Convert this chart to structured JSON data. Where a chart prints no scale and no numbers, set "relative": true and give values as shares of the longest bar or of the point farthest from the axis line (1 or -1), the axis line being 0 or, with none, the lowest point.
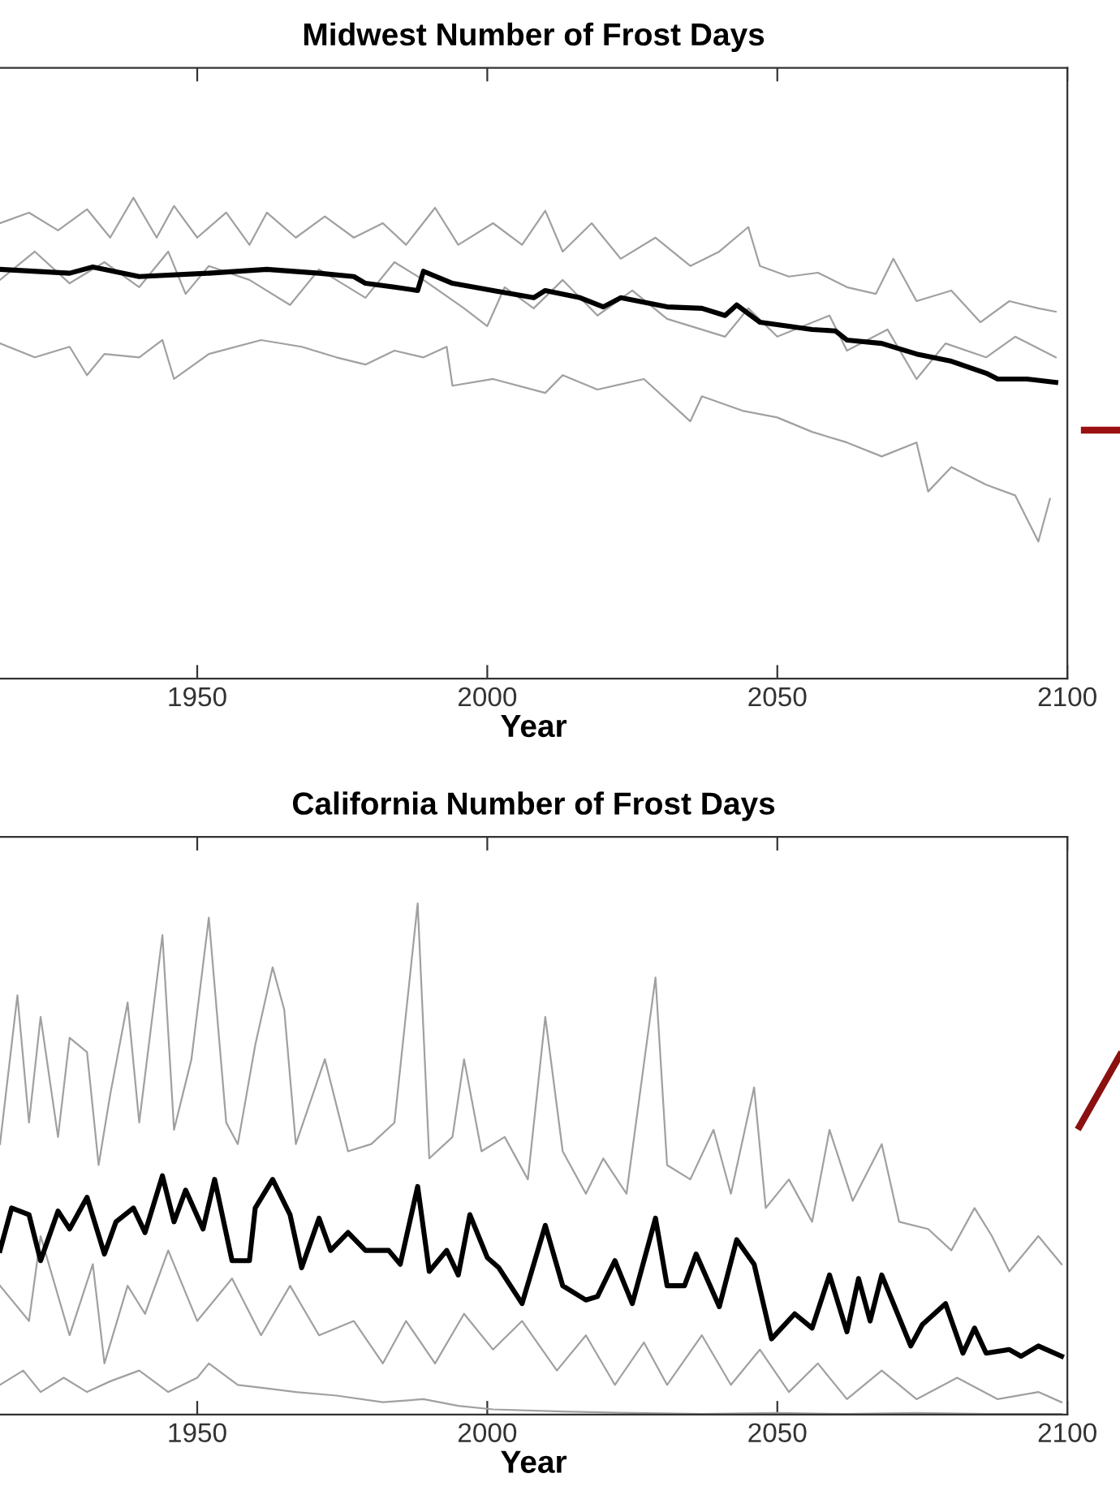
{
  "chart_data": [
    {
      "type": "line",
      "title": "Midwest Number of Frost Days",
      "xlabel": "Year",
      "relative": true,
      "xlim": [
        1916,
        2100
      ],
      "xticks": [
        1950,
        2000,
        2050,
        2100
      ],
      "tick_labels": "x",
      "grid": false,
      "marker": "none",
      "line_style": "solid",
      "series": [
        {
          "color": "#a0a0a0",
          "x": [
            1916,
            1921,
            1926,
            1931,
            1935,
            1939,
            1943,
            1946,
            1950,
            1955,
            1959,
            1962,
            1967,
            1972,
            1977,
            1982,
            1986,
            1991,
            1995,
            2001,
            2006,
            2010,
            2013,
            2018,
            2023,
            2029,
            2035,
            2040,
            2045,
            2047,
            2052,
            2057,
            2062,
            2067,
            2070,
            2074,
            2080,
            2085,
            2090,
            2095,
            2098
          ],
          "values": [
            0.947,
            0.969,
            0.932,
            0.976,
            0.917,
            1.0,
            0.917,
            0.983,
            0.917,
            0.969,
            0.902,
            0.969,
            0.917,
            0.961,
            0.917,
            0.947,
            0.902,
            0.979,
            0.902,
            0.947,
            0.902,
            0.973,
            0.888,
            0.947,
            0.873,
            0.917,
            0.858,
            0.888,
            0.939,
            0.858,
            0.836,
            0.844,
            0.814,
            0.8,
            0.873,
            0.785,
            0.807,
            0.741,
            0.785,
            0.77,
            0.763
          ]
        },
        {
          "color": "#a0a0a0",
          "x": [
            1916,
            1922,
            1928,
            1934,
            1940,
            1945,
            1948,
            1952,
            1959,
            1966,
            1971,
            1979,
            1984,
            1989,
            1996,
            2000,
            2003,
            2008,
            2013,
            2019,
            2025,
            2031,
            2041,
            2045,
            2050,
            2059,
            2062,
            2069,
            2074,
            2079,
            2086,
            2091,
            2098
          ],
          "values": [
            0.829,
            0.888,
            0.822,
            0.866,
            0.814,
            0.888,
            0.8,
            0.858,
            0.829,
            0.777,
            0.851,
            0.792,
            0.866,
            0.829,
            0.77,
            0.733,
            0.814,
            0.77,
            0.829,
            0.755,
            0.807,
            0.748,
            0.711,
            0.77,
            0.711,
            0.755,
            0.682,
            0.726,
            0.623,
            0.697,
            0.668,
            0.711,
            0.668
          ]
        },
        {
          "color": "#a0a0a0",
          "x": [
            1916,
            1922,
            1928,
            1931,
            1934,
            1940,
            1944,
            1946,
            1952,
            1961,
            1968,
            1974,
            1979,
            1984,
            1989,
            1993,
            1994,
            2001,
            2010,
            2013,
            2019,
            2027,
            2035,
            2037,
            2044,
            2050,
            2056,
            2062,
            2068,
            2074,
            2076,
            2080,
            2086,
            2091,
            2095,
            2097
          ],
          "values": [
            0.697,
            0.668,
            0.69,
            0.631,
            0.675,
            0.668,
            0.704,
            0.623,
            0.675,
            0.704,
            0.69,
            0.668,
            0.653,
            0.682,
            0.668,
            0.69,
            0.609,
            0.623,
            0.594,
            0.631,
            0.601,
            0.623,
            0.535,
            0.587,
            0.557,
            0.543,
            0.513,
            0.491,
            0.462,
            0.491,
            0.389,
            0.44,
            0.403,
            0.381,
            0.285,
            0.374
          ]
        },
        {
          "color": "#000000",
          "x": [
            1916,
            1928,
            1932,
            1940,
            1952,
            1962,
            1971,
            1977,
            1979,
            1984,
            1988,
            1989,
            1994,
            2001,
            2008,
            2010,
            2016,
            2020,
            2023,
            2031,
            2037,
            2041,
            2043,
            2047,
            2056,
            2060,
            2062,
            2068,
            2074,
            2080,
            2086,
            2088,
            2093,
            2098
          ],
          "values": [
            0.851,
            0.843,
            0.856,
            0.836,
            0.843,
            0.851,
            0.843,
            0.836,
            0.822,
            0.814,
            0.807,
            0.847,
            0.822,
            0.807,
            0.792,
            0.807,
            0.792,
            0.773,
            0.792,
            0.773,
            0.77,
            0.755,
            0.777,
            0.741,
            0.726,
            0.723,
            0.704,
            0.697,
            0.675,
            0.66,
            0.635,
            0.623,
            0.623,
            0.616
          ]
        }
      ]
    },
    {
      "type": "line",
      "title": "California Number of Frost Days",
      "xlabel": "Year",
      "relative": true,
      "xlim": [
        1916,
        2100
      ],
      "xticks": [
        1950,
        2000,
        2050,
        2100
      ],
      "tick_labels": "x",
      "grid": false,
      "marker": "none",
      "line_style": "solid",
      "series": [
        {
          "color": "#a0a0a0",
          "x": [
            1916,
            1919,
            1921,
            1923,
            1926,
            1928,
            1931,
            1933,
            1935,
            1938,
            1940,
            1944,
            1946,
            1949,
            1952,
            1955,
            1957,
            1960,
            1963,
            1965,
            1967,
            1972,
            1976,
            1980,
            1984,
            1988,
            1990,
            1994,
            1996,
            1999,
            2003,
            2007,
            2010,
            2013,
            2017,
            2020,
            2024,
            2029,
            2031,
            2035,
            2039,
            2042,
            2046,
            2048,
            2052,
            2056,
            2059,
            2063,
            2068,
            2071,
            2076,
            2080,
            2084,
            2087,
            2090,
            2095,
            2099
          ],
          "values": [
            0.529,
            0.82,
            0.571,
            0.778,
            0.543,
            0.737,
            0.709,
            0.488,
            0.626,
            0.806,
            0.571,
            0.938,
            0.557,
            0.695,
            0.972,
            0.571,
            0.529,
            0.723,
            0.875,
            0.792,
            0.529,
            0.695,
            0.515,
            0.529,
            0.571,
            1.0,
            0.501,
            0.543,
            0.695,
            0.515,
            0.543,
            0.46,
            0.778,
            0.515,
            0.432,
            0.501,
            0.432,
            0.855,
            0.488,
            0.46,
            0.557,
            0.432,
            0.64,
            0.404,
            0.46,
            0.377,
            0.557,
            0.418,
            0.529,
            0.377,
            0.363,
            0.321,
            0.404,
            0.349,
            0.28,
            0.349,
            0.294
          ]
        },
        {
          "color": "#a0a0a0",
          "x": [
            1916,
            1921,
            1923,
            1928,
            1932,
            1934,
            1938,
            1941,
            1945,
            1950,
            1956,
            1961,
            1966,
            1971,
            1977,
            1982,
            1986,
            1991,
            1996,
            2001,
            2006,
            2012,
            2017,
            2022,
            2027,
            2031,
            2037,
            2042,
            2047,
            2052,
            2057,
            2062,
            2068,
            2074,
            2081,
            2088,
            2095,
            2099
          ],
          "values": [
            0.252,
            0.183,
            0.349,
            0.155,
            0.294,
            0.1,
            0.252,
            0.197,
            0.321,
            0.183,
            0.266,
            0.155,
            0.252,
            0.155,
            0.183,
            0.1,
            0.183,
            0.1,
            0.197,
            0.127,
            0.183,
            0.086,
            0.155,
            0.058,
            0.141,
            0.058,
            0.155,
            0.058,
            0.127,
            0.044,
            0.1,
            0.03,
            0.086,
            0.03,
            0.072,
            0.03,
            0.044,
            0.024
          ]
        },
        {
          "color": "#a0a0a0",
          "x": [
            1916,
            1920,
            1923,
            1927,
            1931,
            1935,
            1940,
            1945,
            1950,
            1952,
            1957,
            1962,
            1967,
            1974,
            1982,
            1989,
            1995,
            2001,
            2013,
            2025,
            2037,
            2050,
            2062,
            2074,
            2086,
            2099
          ],
          "values": [
            0.058,
            0.086,
            0.044,
            0.072,
            0.044,
            0.065,
            0.086,
            0.044,
            0.072,
            0.1,
            0.058,
            0.051,
            0.044,
            0.037,
            0.024,
            0.03,
            0.017,
            0.01,
            0.006,
            0.003,
            0.001,
            0.003,
            0.001,
            0.003,
            0.001,
            0.001
          ]
        },
        {
          "color": "#000000",
          "x": [
            1916,
            1918,
            1921,
            1923,
            1926,
            1928,
            1931,
            1934,
            1936,
            1939,
            1941,
            1944,
            1946,
            1948,
            1951,
            1953,
            1956,
            1959,
            1960,
            1963,
            1966,
            1968,
            1971,
            1973,
            1976,
            1979,
            1983,
            1985,
            1988,
            1990,
            1993,
            1995,
            1997,
            2000,
            2002,
            2006,
            2010,
            2013,
            2017,
            2019,
            2022,
            2025,
            2029,
            2031,
            2034,
            2036,
            2040,
            2043,
            2046,
            2049,
            2053,
            2056,
            2059,
            2062,
            2064,
            2066,
            2068,
            2073,
            2075,
            2079,
            2082,
            2084,
            2086,
            2090,
            2092,
            2095,
            2099
          ],
          "values": [
            0.321,
            0.404,
            0.391,
            0.301,
            0.398,
            0.363,
            0.425,
            0.314,
            0.377,
            0.404,
            0.356,
            0.467,
            0.377,
            0.439,
            0.363,
            0.46,
            0.301,
            0.301,
            0.404,
            0.46,
            0.391,
            0.287,
            0.384,
            0.321,
            0.356,
            0.321,
            0.321,
            0.294,
            0.446,
            0.28,
            0.321,
            0.273,
            0.391,
            0.307,
            0.287,
            0.217,
            0.37,
            0.252,
            0.224,
            0.231,
            0.301,
            0.217,
            0.384,
            0.252,
            0.252,
            0.314,
            0.211,
            0.342,
            0.294,
            0.148,
            0.197,
            0.169,
            0.273,
            0.162,
            0.266,
            0.183,
            0.273,
            0.134,
            0.176,
            0.217,
            0.12,
            0.169,
            0.12,
            0.127,
            0.114,
            0.134,
            0.114
          ]
        }
      ]
    }
  ]
}
